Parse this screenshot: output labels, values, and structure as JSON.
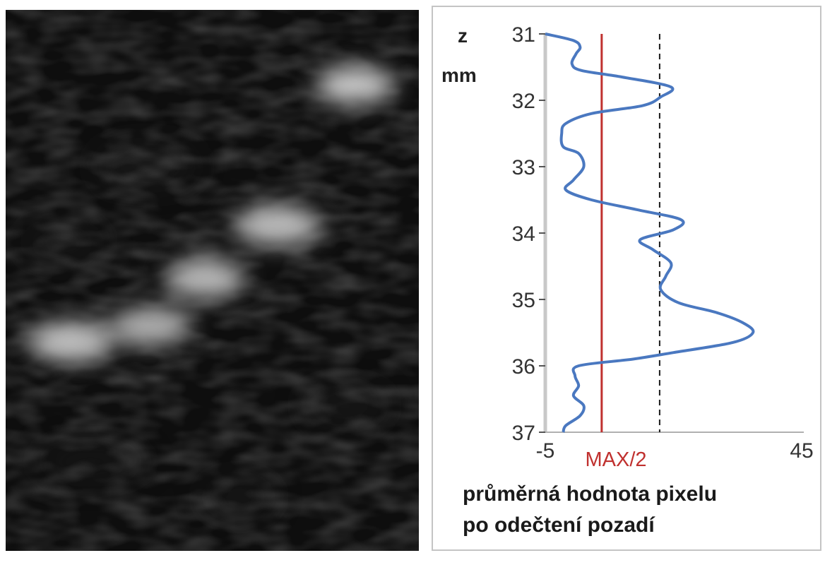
{
  "figure": {
    "image_name": "ultrasound-bmode-image",
    "chart_data": {
      "type": "line",
      "orientation": "vertical-depth-profile",
      "y_axis": {
        "label": "z",
        "unit": "mm",
        "range": [
          31,
          37
        ],
        "ticks": [
          "31",
          "32",
          "33",
          "34",
          "35",
          "36",
          "37"
        ],
        "inverted": true
      },
      "x_axis": {
        "range": [
          -5,
          45
        ],
        "tick_labels": [
          "-5",
          "45"
        ],
        "label_lines": [
          "průměrná hodnota pixelu",
          "po odečtení pozadí"
        ]
      },
      "series": [
        {
          "color": "#4a78c0",
          "points": [
            [
              31.0,
              -5.0
            ],
            [
              31.1,
              0.5
            ],
            [
              31.2,
              1.8
            ],
            [
              31.3,
              1.0
            ],
            [
              31.45,
              0.2
            ],
            [
              31.55,
              2.0
            ],
            [
              31.65,
              10.0
            ],
            [
              31.8,
              19.5
            ],
            [
              31.95,
              17.5
            ],
            [
              32.08,
              14.0
            ],
            [
              32.2,
              4.0
            ],
            [
              32.35,
              -1.0
            ],
            [
              32.5,
              -1.8
            ],
            [
              32.7,
              -1.5
            ],
            [
              32.8,
              1.5
            ],
            [
              33.0,
              2.5
            ],
            [
              33.2,
              0.5
            ],
            [
              33.35,
              -1.0
            ],
            [
              33.5,
              4.0
            ],
            [
              33.65,
              13.0
            ],
            [
              33.8,
              21.5
            ],
            [
              33.95,
              20.0
            ],
            [
              34.1,
              13.5
            ],
            [
              34.25,
              16.0
            ],
            [
              34.45,
              19.5
            ],
            [
              34.65,
              18.5
            ],
            [
              34.85,
              17.5
            ],
            [
              35.05,
              21.0
            ],
            [
              35.2,
              28.5
            ],
            [
              35.35,
              33.5
            ],
            [
              35.5,
              35.5
            ],
            [
              35.65,
              31.5
            ],
            [
              35.8,
              20.0
            ],
            [
              35.9,
              12.0
            ],
            [
              36.0,
              1.5
            ],
            [
              36.15,
              0.8
            ],
            [
              36.3,
              1.5
            ],
            [
              36.45,
              0.5
            ],
            [
              36.6,
              2.5
            ],
            [
              36.75,
              1.8
            ],
            [
              36.9,
              -1.0
            ],
            [
              37.0,
              -1.5
            ]
          ]
        }
      ],
      "reference_lines": [
        {
          "name": "MAX/2",
          "value": 6.0,
          "color": "#c0312f",
          "style": "solid"
        },
        {
          "value": 17.3,
          "color": "#1a1a1a",
          "style": "dashed"
        }
      ]
    }
  }
}
